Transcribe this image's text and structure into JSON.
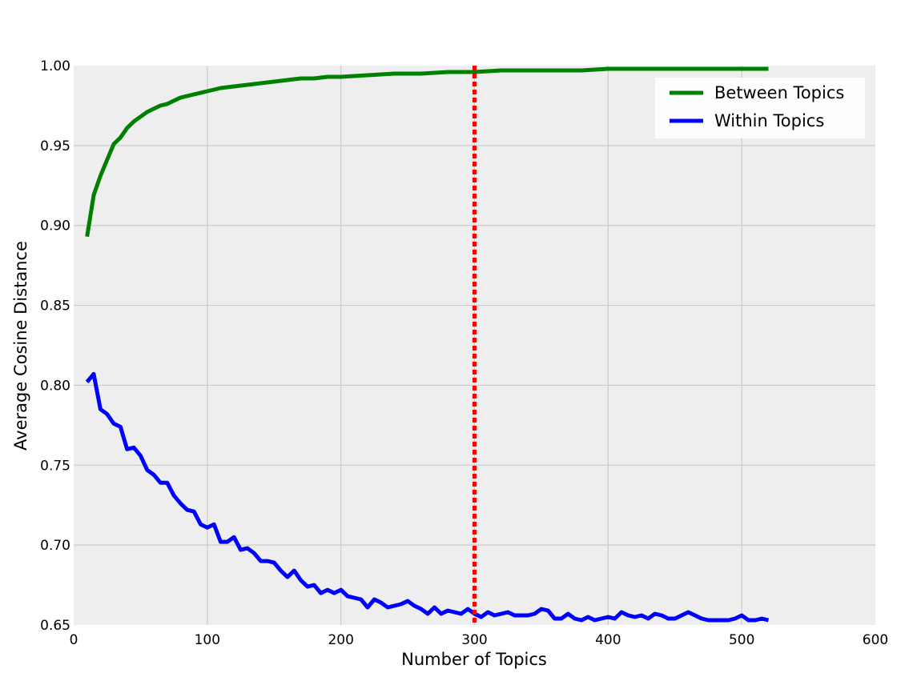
{
  "chart_data": {
    "type": "line",
    "title": "",
    "xlabel": "Number of Topics",
    "ylabel": "Average Cosine Distance",
    "xlim": [
      0,
      600
    ],
    "ylim": [
      0.65,
      1.0
    ],
    "xticks": [
      0,
      100,
      200,
      300,
      400,
      500,
      600
    ],
    "yticks": [
      0.65,
      0.7,
      0.75,
      0.8,
      0.85,
      0.9,
      0.95,
      1.0
    ],
    "xtick_labels": [
      "0",
      "100",
      "200",
      "300",
      "400",
      "500",
      "600"
    ],
    "ytick_labels": [
      "0.65",
      "0.70",
      "0.75",
      "0.80",
      "0.85",
      "0.90",
      "0.95",
      "1.00"
    ],
    "grid": true,
    "legend_position": "top-right",
    "reference_line": {
      "x": 300,
      "color": "#ff0000",
      "style": "dotted"
    },
    "series": [
      {
        "name": "Between Topics",
        "color": "#008000",
        "points": [
          [
            10,
            0.893
          ],
          [
            15,
            0.919
          ],
          [
            20,
            0.931
          ],
          [
            25,
            0.941
          ],
          [
            30,
            0.951
          ],
          [
            35,
            0.955
          ],
          [
            40,
            0.961
          ],
          [
            45,
            0.965
          ],
          [
            50,
            0.968
          ],
          [
            55,
            0.971
          ],
          [
            60,
            0.973
          ],
          [
            65,
            0.975
          ],
          [
            70,
            0.976
          ],
          [
            75,
            0.978
          ],
          [
            80,
            0.98
          ],
          [
            90,
            0.982
          ],
          [
            100,
            0.984
          ],
          [
            110,
            0.986
          ],
          [
            120,
            0.987
          ],
          [
            130,
            0.988
          ],
          [
            140,
            0.989
          ],
          [
            150,
            0.99
          ],
          [
            160,
            0.991
          ],
          [
            170,
            0.992
          ],
          [
            180,
            0.992
          ],
          [
            190,
            0.993
          ],
          [
            200,
            0.993
          ],
          [
            220,
            0.994
          ],
          [
            240,
            0.995
          ],
          [
            260,
            0.995
          ],
          [
            280,
            0.996
          ],
          [
            300,
            0.996
          ],
          [
            320,
            0.997
          ],
          [
            340,
            0.997
          ],
          [
            360,
            0.997
          ],
          [
            380,
            0.997
          ],
          [
            400,
            0.998
          ],
          [
            420,
            0.998
          ],
          [
            440,
            0.998
          ],
          [
            460,
            0.998
          ],
          [
            480,
            0.998
          ],
          [
            500,
            0.998
          ],
          [
            520,
            0.998
          ]
        ]
      },
      {
        "name": "Within Topics",
        "color": "#0000ff",
        "points": [
          [
            10,
            0.802
          ],
          [
            15,
            0.807
          ],
          [
            20,
            0.785
          ],
          [
            25,
            0.782
          ],
          [
            30,
            0.776
          ],
          [
            35,
            0.774
          ],
          [
            40,
            0.76
          ],
          [
            45,
            0.761
          ],
          [
            50,
            0.756
          ],
          [
            55,
            0.747
          ],
          [
            60,
            0.744
          ],
          [
            65,
            0.739
          ],
          [
            70,
            0.739
          ],
          [
            75,
            0.731
          ],
          [
            80,
            0.726
          ],
          [
            85,
            0.722
          ],
          [
            90,
            0.721
          ],
          [
            95,
            0.713
          ],
          [
            100,
            0.711
          ],
          [
            105,
            0.713
          ],
          [
            110,
            0.702
          ],
          [
            115,
            0.702
          ],
          [
            120,
            0.705
          ],
          [
            125,
            0.697
          ],
          [
            130,
            0.698
          ],
          [
            135,
            0.695
          ],
          [
            140,
            0.69
          ],
          [
            145,
            0.69
          ],
          [
            150,
            0.689
          ],
          [
            155,
            0.684
          ],
          [
            160,
            0.68
          ],
          [
            165,
            0.684
          ],
          [
            170,
            0.678
          ],
          [
            175,
            0.674
          ],
          [
            180,
            0.675
          ],
          [
            185,
            0.67
          ],
          [
            190,
            0.672
          ],
          [
            195,
            0.67
          ],
          [
            200,
            0.672
          ],
          [
            205,
            0.668
          ],
          [
            210,
            0.667
          ],
          [
            215,
            0.666
          ],
          [
            220,
            0.661
          ],
          [
            225,
            0.666
          ],
          [
            230,
            0.664
          ],
          [
            235,
            0.661
          ],
          [
            240,
            0.662
          ],
          [
            245,
            0.663
          ],
          [
            250,
            0.665
          ],
          [
            255,
            0.662
          ],
          [
            260,
            0.66
          ],
          [
            265,
            0.657
          ],
          [
            270,
            0.661
          ],
          [
            275,
            0.657
          ],
          [
            280,
            0.659
          ],
          [
            285,
            0.658
          ],
          [
            290,
            0.657
          ],
          [
            295,
            0.66
          ],
          [
            300,
            0.657
          ],
          [
            305,
            0.655
          ],
          [
            310,
            0.658
          ],
          [
            315,
            0.656
          ],
          [
            320,
            0.657
          ],
          [
            325,
            0.658
          ],
          [
            330,
            0.656
          ],
          [
            340,
            0.656
          ],
          [
            345,
            0.657
          ],
          [
            350,
            0.66
          ],
          [
            355,
            0.659
          ],
          [
            360,
            0.654
          ],
          [
            365,
            0.654
          ],
          [
            370,
            0.657
          ],
          [
            375,
            0.654
          ],
          [
            380,
            0.653
          ],
          [
            385,
            0.655
          ],
          [
            390,
            0.653
          ],
          [
            395,
            0.654
          ],
          [
            400,
            0.655
          ],
          [
            405,
            0.654
          ],
          [
            410,
            0.658
          ],
          [
            415,
            0.656
          ],
          [
            420,
            0.655
          ],
          [
            425,
            0.656
          ],
          [
            430,
            0.654
          ],
          [
            435,
            0.657
          ],
          [
            440,
            0.656
          ],
          [
            445,
            0.654
          ],
          [
            450,
            0.654
          ],
          [
            455,
            0.656
          ],
          [
            460,
            0.658
          ],
          [
            465,
            0.656
          ],
          [
            470,
            0.654
          ],
          [
            475,
            0.653
          ],
          [
            480,
            0.653
          ],
          [
            485,
            0.653
          ],
          [
            490,
            0.653
          ],
          [
            495,
            0.654
          ],
          [
            500,
            0.656
          ],
          [
            505,
            0.653
          ],
          [
            510,
            0.653
          ],
          [
            515,
            0.654
          ],
          [
            520,
            0.653
          ]
        ]
      }
    ]
  }
}
